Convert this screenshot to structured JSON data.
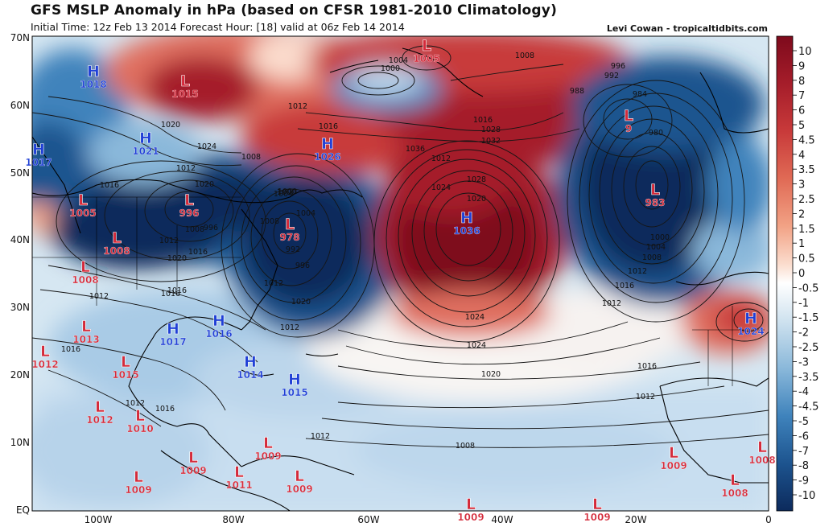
{
  "header": {
    "title": "GFS MSLP Anomaly in hPa (based on CFSR 1981-2010 Climatology)",
    "subtitle": "Initial Time: 12z Feb 13 2014 Forecast Hour: [18] valid at 06z Feb 14 2014",
    "credit": "Levi Cowan - tropicaltidbits.com"
  },
  "axes": {
    "lat_labels": [
      "70N",
      "60N",
      "50N",
      "40N",
      "30N",
      "20N",
      "10N",
      "EQ"
    ],
    "lon_labels": [
      "100W",
      "80W",
      "60W",
      "40W",
      "20W",
      "0"
    ]
  },
  "colorbar": {
    "labels": [
      "10",
      "9",
      "8",
      "7",
      "6",
      "5",
      "4.5",
      "4",
      "3.5",
      "3",
      "2.5",
      "2",
      "1.5",
      "1",
      "0.5",
      "0",
      "-0.5",
      "-1",
      "-1.5",
      "-2",
      "-2.5",
      "-3",
      "-3.5",
      "-4",
      "-4.5",
      "-5",
      "-6",
      "-7",
      "-8",
      "-9",
      "-10"
    ]
  },
  "pressure_centers": [
    {
      "type": "H",
      "value": "1018"
    },
    {
      "type": "L",
      "value": "1015"
    },
    {
      "type": "H",
      "value": "1021"
    },
    {
      "type": "H",
      "value": "1017"
    },
    {
      "type": "H",
      "value": "1026"
    },
    {
      "type": "L",
      "value": "1005"
    },
    {
      "type": "L",
      "value": "996"
    },
    {
      "type": "L",
      "value": "978"
    },
    {
      "type": "L",
      "value": "1008"
    },
    {
      "type": "L",
      "value": "1008"
    },
    {
      "type": "H",
      "value": "1036"
    },
    {
      "type": "L",
      "value": "1005"
    },
    {
      "type": "L",
      "value": "9"
    },
    {
      "type": "L",
      "value": "983"
    },
    {
      "type": "H",
      "value": "1024"
    },
    {
      "type": "L",
      "value": "1013"
    },
    {
      "type": "L",
      "value": "1012"
    },
    {
      "type": "H",
      "value": "1017"
    },
    {
      "type": "H",
      "value": "1016"
    },
    {
      "type": "L",
      "value": "1015"
    },
    {
      "type": "H",
      "value": "1014"
    },
    {
      "type": "H",
      "value": "1015"
    },
    {
      "type": "L",
      "value": "1012"
    },
    {
      "type": "L",
      "value": "1010"
    },
    {
      "type": "L",
      "value": "1009"
    },
    {
      "type": "L",
      "value": "1009"
    },
    {
      "type": "L",
      "value": "1011"
    },
    {
      "type": "L",
      "value": "1009"
    },
    {
      "type": "L",
      "value": "1009"
    },
    {
      "type": "L",
      "value": "1008"
    },
    {
      "type": "L",
      "value": "1008"
    },
    {
      "type": "L",
      "value": "1009"
    },
    {
      "type": "L",
      "value": "1009"
    },
    {
      "type": "L",
      "value": "1009"
    },
    {
      "type": "L",
      "value": "1009"
    }
  ],
  "isobar_labels": [
    "1000",
    "1004",
    "1008",
    "996",
    "992",
    "988",
    "984",
    "980",
    "1012",
    "1016",
    "1020",
    "1024",
    "1028",
    "1032",
    "1036",
    "1008",
    "1004",
    "1000",
    "996",
    "1012",
    "1016",
    "1020",
    "1024",
    "1028",
    "1012",
    "1016",
    "1020",
    "1012",
    "1016",
    "1020",
    "1000",
    "1004",
    "1008",
    "992",
    "1012",
    "1016",
    "1020",
    "1024",
    "996",
    "1000",
    "1004",
    "1008",
    "1012",
    "1016",
    "1012",
    "1016",
    "1012",
    "1016",
    "1012",
    "1008",
    "1012",
    "1016",
    "1008",
    "1012",
    "1016",
    "1024",
    "1020",
    "1012"
  ],
  "colors": {
    "high_symbol": "#1f3fd6",
    "low_symbol": "#d42a3a",
    "deep_red": "#8b0a1c",
    "deep_blue": "#0c2a5c"
  }
}
